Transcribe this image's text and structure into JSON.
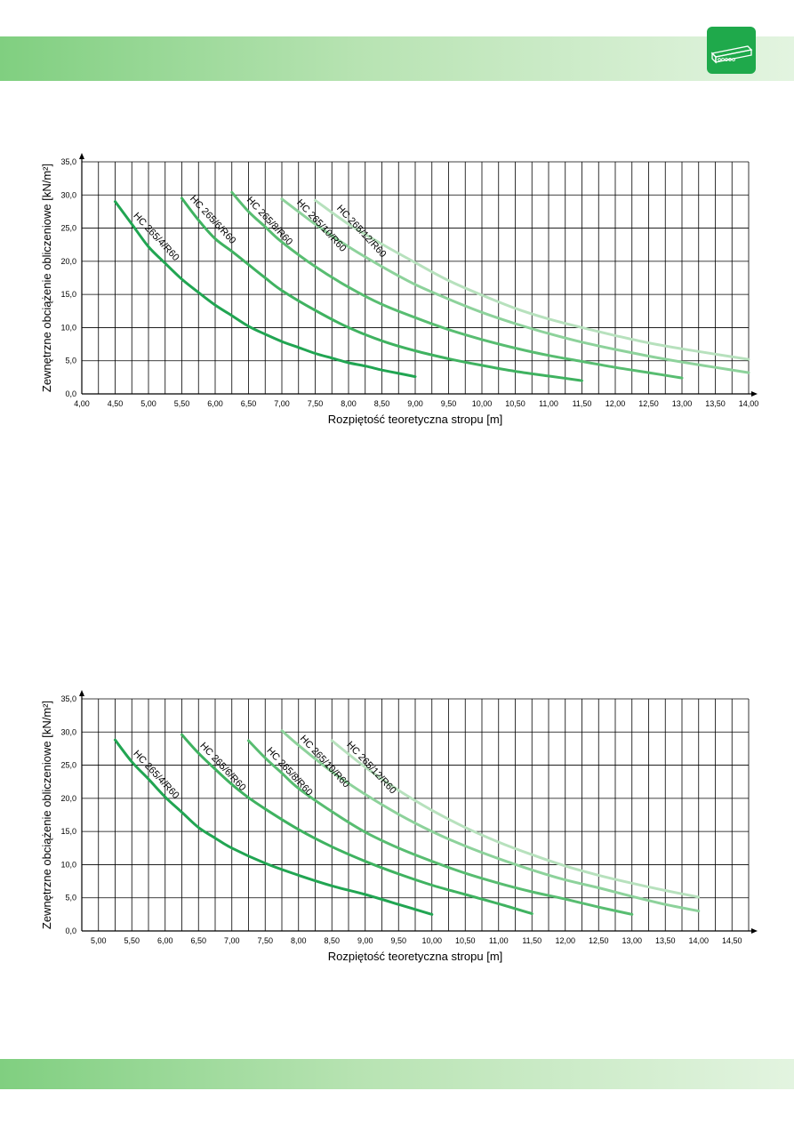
{
  "chart_data": [
    {
      "type": "line",
      "xlabel": "Rozpiętość teoretyczna stropu [m]",
      "ylabel": "Zewnętrzne obciążenie obliczeniowe [kN/m²]",
      "xlim": [
        4.0,
        14.0
      ],
      "ylim": [
        0,
        35
      ],
      "xticks": [
        "4,00",
        "4,50",
        "5,00",
        "5,50",
        "6,00",
        "6,50",
        "7,00",
        "7,50",
        "8,00",
        "8,50",
        "9,00",
        "9,50",
        "10,00",
        "10,50",
        "11,00",
        "11,50",
        "12,00",
        "12,50",
        "13,00",
        "13,50",
        "14,00"
      ],
      "yticks": [
        "0,0",
        "5,0",
        "10,0",
        "15,0",
        "20,0",
        "25,0",
        "30,0",
        "35,0"
      ],
      "grid": true,
      "series": [
        {
          "name": "HC 265/4/R60",
          "color": "#21a552",
          "x": [
            4.5,
            4.75,
            5.0,
            5.25,
            5.5,
            5.75,
            6.0,
            6.25,
            6.5,
            6.75,
            7.0,
            7.25,
            7.5,
            7.75,
            8.0,
            8.25,
            8.5,
            8.75,
            9.0
          ],
          "y": [
            29.0,
            25.6,
            22.2,
            19.7,
            17.3,
            15.3,
            13.4,
            11.8,
            10.2,
            9.0,
            7.9,
            7.0,
            6.1,
            5.4,
            4.7,
            4.2,
            3.6,
            3.1,
            2.6
          ]
        },
        {
          "name": "HC 265/6/R60",
          "color": "#3fb260",
          "x": [
            5.5,
            5.75,
            6.0,
            6.25,
            6.5,
            6.75,
            7.0,
            7.5,
            8.0,
            8.5,
            9.0,
            9.5,
            10.0,
            10.5,
            11.0,
            11.5
          ],
          "y": [
            29.5,
            26.2,
            23.4,
            21.5,
            19.5,
            17.5,
            15.6,
            12.6,
            10.0,
            8.0,
            6.5,
            5.3,
            4.3,
            3.4,
            2.7,
            2.0
          ]
        },
        {
          "name": "HC 265/8/R60",
          "color": "#58bd71",
          "x": [
            6.25,
            6.5,
            6.75,
            7.0,
            7.5,
            8.0,
            8.5,
            9.0,
            9.5,
            10.0,
            10.5,
            11.0,
            11.5,
            12.0,
            12.5,
            13.0
          ],
          "y": [
            30.4,
            27.5,
            25.2,
            22.9,
            19.2,
            16.1,
            13.5,
            11.5,
            9.7,
            8.2,
            6.9,
            5.8,
            4.9,
            4.0,
            3.2,
            2.4
          ]
        },
        {
          "name": "HC 265/10/R60",
          "color": "#8dd29b",
          "x": [
            7.0,
            7.5,
            8.0,
            8.5,
            9.0,
            9.5,
            10.0,
            10.5,
            11.0,
            11.5,
            12.0,
            12.5,
            13.0,
            13.5,
            14.0
          ],
          "y": [
            29.4,
            25.6,
            22.2,
            19.2,
            16.5,
            14.3,
            12.3,
            10.6,
            9.1,
            7.8,
            6.7,
            5.7,
            4.8,
            4.0,
            3.2
          ]
        },
        {
          "name": "HC 265/12/R60",
          "color": "#b7e1bd",
          "x": [
            7.5,
            8.0,
            8.5,
            9.0,
            9.5,
            10.0,
            10.5,
            11.0,
            11.5,
            12.0,
            12.5,
            13.0,
            13.5,
            14.0
          ],
          "y": [
            29.2,
            25.6,
            22.6,
            19.8,
            17.1,
            14.9,
            12.9,
            11.3,
            10.0,
            8.8,
            7.7,
            6.8,
            6.0,
            5.2
          ]
        }
      ]
    },
    {
      "type": "line",
      "xlabel": "Rozpiętość teoretyczna stropu [m]",
      "ylabel": "Zewnętrzne obciążenie obliczeniowe [kN/m²]",
      "xlim": [
        4.75,
        14.75
      ],
      "ylim": [
        0,
        35
      ],
      "xticks": [
        "5,00",
        "5,50",
        "6,00",
        "6,50",
        "7,00",
        "7,50",
        "8,00",
        "8,50",
        "9,00",
        "9,50",
        "10,00",
        "10,50",
        "11,00",
        "11,50",
        "12,00",
        "12,50",
        "13,00",
        "13,50",
        "14,00",
        "14,50"
      ],
      "yticks": [
        "0,0",
        "5,0",
        "10,0",
        "15,0",
        "20,0",
        "25,0",
        "30,0",
        "35,0"
      ],
      "grid": true,
      "series": [
        {
          "name": "HC 265/4/R60",
          "color": "#21a552",
          "x": [
            5.25,
            5.5,
            5.75,
            6.0,
            6.25,
            6.5,
            6.75,
            7.0,
            7.5,
            8.0,
            8.5,
            9.0,
            9.5,
            10.0
          ],
          "y": [
            28.8,
            25.5,
            22.9,
            20.2,
            17.9,
            15.6,
            14.0,
            12.5,
            10.2,
            8.4,
            6.8,
            5.5,
            4.0,
            2.5
          ]
        },
        {
          "name": "HC 265/6/R60",
          "color": "#3fb260",
          "x": [
            6.25,
            6.5,
            6.75,
            7.0,
            7.25,
            7.5,
            8.0,
            8.5,
            9.0,
            9.5,
            10.0,
            10.5,
            11.0,
            11.5
          ],
          "y": [
            29.6,
            26.8,
            24.4,
            22.1,
            20.1,
            18.4,
            15.3,
            12.7,
            10.5,
            8.6,
            6.9,
            5.5,
            4.1,
            2.6
          ]
        },
        {
          "name": "HC 265/8/R60",
          "color": "#58bd71",
          "x": [
            7.25,
            7.5,
            7.75,
            8.0,
            8.5,
            9.0,
            9.5,
            10.0,
            10.5,
            11.0,
            11.5,
            12.0,
            12.5,
            13.0
          ],
          "y": [
            28.7,
            26.1,
            23.8,
            21.5,
            18.0,
            14.9,
            12.5,
            10.5,
            8.7,
            7.2,
            5.9,
            4.8,
            3.6,
            2.5
          ]
        },
        {
          "name": "HC 265/10/R60",
          "color": "#8dd29b",
          "x": [
            7.75,
            8.0,
            8.5,
            9.0,
            9.5,
            10.0,
            10.5,
            11.0,
            11.5,
            12.0,
            12.5,
            13.0,
            13.5,
            14.0
          ],
          "y": [
            30.2,
            28.0,
            24.0,
            20.6,
            17.6,
            15.0,
            12.8,
            10.9,
            9.2,
            7.7,
            6.5,
            5.2,
            4.0,
            3.0
          ]
        },
        {
          "name": "HC 265/12/R60",
          "color": "#b7e1bd",
          "x": [
            8.5,
            9.0,
            9.5,
            10.0,
            10.5,
            11.0,
            11.5,
            12.0,
            12.5,
            13.0,
            13.5,
            14.0
          ],
          "y": [
            28.7,
            24.7,
            21.2,
            18.2,
            15.6,
            13.4,
            11.5,
            9.8,
            8.4,
            7.2,
            6.1,
            5.1
          ]
        }
      ]
    }
  ]
}
